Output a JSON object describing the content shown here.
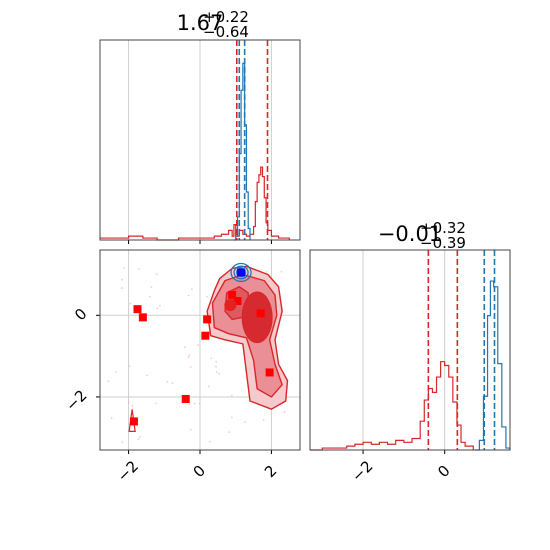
{
  "chart_data": [
    {
      "type": "histogram",
      "panel": "marginal-x",
      "title": {
        "value": "1.67",
        "plus": "+0.22",
        "minus": "−0.64"
      },
      "xlim": [
        -2.8,
        2.8
      ],
      "grid": true,
      "red_quantiles": [
        1.03,
        1.89
      ],
      "blue_quantiles": [
        1.1,
        1.25
      ],
      "red_series": [
        [
          -2.8,
          0.01
        ],
        [
          -2.2,
          0.01
        ],
        [
          -2.0,
          0.02
        ],
        [
          -1.6,
          0.01
        ],
        [
          -1.2,
          0.0
        ],
        [
          -0.6,
          0.01
        ],
        [
          0.0,
          0.01
        ],
        [
          0.4,
          0.02
        ],
        [
          0.6,
          0.03
        ],
        [
          0.8,
          0.05
        ],
        [
          0.9,
          0.02
        ],
        [
          0.95,
          0.08
        ],
        [
          1.0,
          0.02
        ],
        [
          1.1,
          0.05
        ],
        [
          1.2,
          0.03
        ],
        [
          1.3,
          0.02
        ],
        [
          1.4,
          0.03
        ],
        [
          1.5,
          0.07
        ],
        [
          1.55,
          0.2
        ],
        [
          1.6,
          0.3
        ],
        [
          1.65,
          0.34
        ],
        [
          1.7,
          0.38
        ],
        [
          1.75,
          0.33
        ],
        [
          1.8,
          0.22
        ],
        [
          1.85,
          0.09
        ],
        [
          1.9,
          0.05
        ],
        [
          2.0,
          0.02
        ],
        [
          2.2,
          0.01
        ],
        [
          2.5,
          0.0
        ]
      ],
      "blue_series": [
        [
          0.95,
          0.0
        ],
        [
          1.0,
          0.02
        ],
        [
          1.05,
          0.12
        ],
        [
          1.1,
          0.45
        ],
        [
          1.15,
          0.78
        ],
        [
          1.2,
          0.92
        ],
        [
          1.25,
          0.6
        ],
        [
          1.3,
          0.25
        ],
        [
          1.35,
          0.06
        ],
        [
          1.4,
          0.0
        ]
      ]
    },
    {
      "type": "contour",
      "panel": "joint",
      "xlim": [
        -2.8,
        2.8
      ],
      "ylim": [
        -3.3,
        1.6
      ],
      "xticks": [
        "−2",
        "0",
        "2"
      ],
      "yticks": [
        "0",
        "−2"
      ],
      "grid": true,
      "red_points": [
        [
          -1.75,
          0.15
        ],
        [
          -1.6,
          -0.05
        ],
        [
          0.2,
          -0.1
        ],
        [
          0.15,
          -0.5
        ],
        [
          0.9,
          0.5
        ],
        [
          1.05,
          0.35
        ],
        [
          -0.4,
          -2.05
        ],
        [
          -1.85,
          -2.6
        ],
        [
          1.7,
          0.05
        ],
        [
          1.95,
          -1.4
        ]
      ],
      "red_circle": [
        0.85,
        0.25
      ],
      "blue_point": [
        1.15,
        1.05
      ],
      "red_regions": [
        {
          "level": "outer",
          "points": [
            [
              0.55,
              0.9
            ],
            [
              0.9,
              1.15
            ],
            [
              1.3,
              1.2
            ],
            [
              1.9,
              1.0
            ],
            [
              2.2,
              0.7
            ],
            [
              2.3,
              0.1
            ],
            [
              2.1,
              -0.6
            ],
            [
              2.2,
              -1.2
            ],
            [
              2.45,
              -1.6
            ],
            [
              2.4,
              -2.1
            ],
            [
              2.0,
              -2.3
            ],
            [
              1.4,
              -2.1
            ],
            [
              1.3,
              -1.4
            ],
            [
              1.2,
              -0.7
            ],
            [
              0.7,
              -0.6
            ],
            [
              0.3,
              -0.5
            ],
            [
              0.2,
              0.1
            ],
            [
              0.4,
              0.6
            ]
          ]
        },
        {
          "level": "middle",
          "points": [
            [
              0.7,
              0.85
            ],
            [
              1.2,
              1.0
            ],
            [
              1.8,
              0.85
            ],
            [
              2.1,
              0.5
            ],
            [
              2.15,
              0.0
            ],
            [
              1.95,
              -0.6
            ],
            [
              2.1,
              -1.2
            ],
            [
              2.3,
              -1.7
            ],
            [
              2.0,
              -2.0
            ],
            [
              1.6,
              -1.8
            ],
            [
              1.5,
              -1.1
            ],
            [
              1.3,
              -0.55
            ],
            [
              0.8,
              -0.45
            ],
            [
              0.4,
              -0.3
            ],
            [
              0.35,
              0.3
            ]
          ]
        },
        {
          "level": "inner",
          "points": [
            [
              0.75,
              0.55
            ],
            [
              1.1,
              0.7
            ],
            [
              1.35,
              0.55
            ],
            [
              1.35,
              0.15
            ],
            [
              1.2,
              -0.05
            ],
            [
              0.9,
              -0.1
            ],
            [
              0.7,
              0.1
            ]
          ]
        }
      ],
      "red_ellipse": {
        "cx": 1.6,
        "cy": -0.05,
        "rx": 0.42,
        "ry": 0.62
      },
      "blue_contour": {
        "cx": 1.15,
        "cy": 1.05,
        "rx": 0.28,
        "ry": 0.22
      }
    },
    {
      "type": "histogram",
      "panel": "marginal-y",
      "title": {
        "value": "−0.01",
        "plus": "+0.32",
        "minus": "−0.39"
      },
      "xlim": [
        -3.3,
        1.6
      ],
      "xticks": [
        "−2",
        "0"
      ],
      "grid": true,
      "red_quantiles": [
        -0.4,
        0.31
      ],
      "blue_quantiles": [
        0.97,
        1.22
      ],
      "red_series": [
        [
          -3.3,
          0.0
        ],
        [
          -3.0,
          0.01
        ],
        [
          -2.6,
          0.01
        ],
        [
          -2.4,
          0.02
        ],
        [
          -2.2,
          0.03
        ],
        [
          -2.0,
          0.04
        ],
        [
          -1.8,
          0.03
        ],
        [
          -1.6,
          0.04
        ],
        [
          -1.4,
          0.03
        ],
        [
          -1.2,
          0.05
        ],
        [
          -1.0,
          0.04
        ],
        [
          -0.8,
          0.06
        ],
        [
          -0.6,
          0.15
        ],
        [
          -0.5,
          0.26
        ],
        [
          -0.4,
          0.32
        ],
        [
          -0.3,
          0.3
        ],
        [
          -0.2,
          0.38
        ],
        [
          -0.1,
          0.46
        ],
        [
          0.0,
          0.44
        ],
        [
          0.1,
          0.38
        ],
        [
          0.2,
          0.25
        ],
        [
          0.3,
          0.13
        ],
        [
          0.4,
          0.04
        ],
        [
          0.5,
          0.02
        ],
        [
          0.7,
          0.0
        ]
      ],
      "blue_series": [
        [
          0.75,
          0.0
        ],
        [
          0.85,
          0.05
        ],
        [
          0.95,
          0.28
        ],
        [
          1.05,
          0.7
        ],
        [
          1.12,
          0.88
        ],
        [
          1.2,
          0.85
        ],
        [
          1.3,
          0.45
        ],
        [
          1.4,
          0.12
        ],
        [
          1.5,
          0.01
        ],
        [
          1.6,
          0.0
        ]
      ]
    }
  ],
  "colors": {
    "red": "#d62728",
    "blue": "#1f77b4",
    "bright_red": "#ff0000",
    "bright_blue": "#0000ff",
    "fill_red": "#e8868a",
    "grid": "#cfcfcf"
  }
}
